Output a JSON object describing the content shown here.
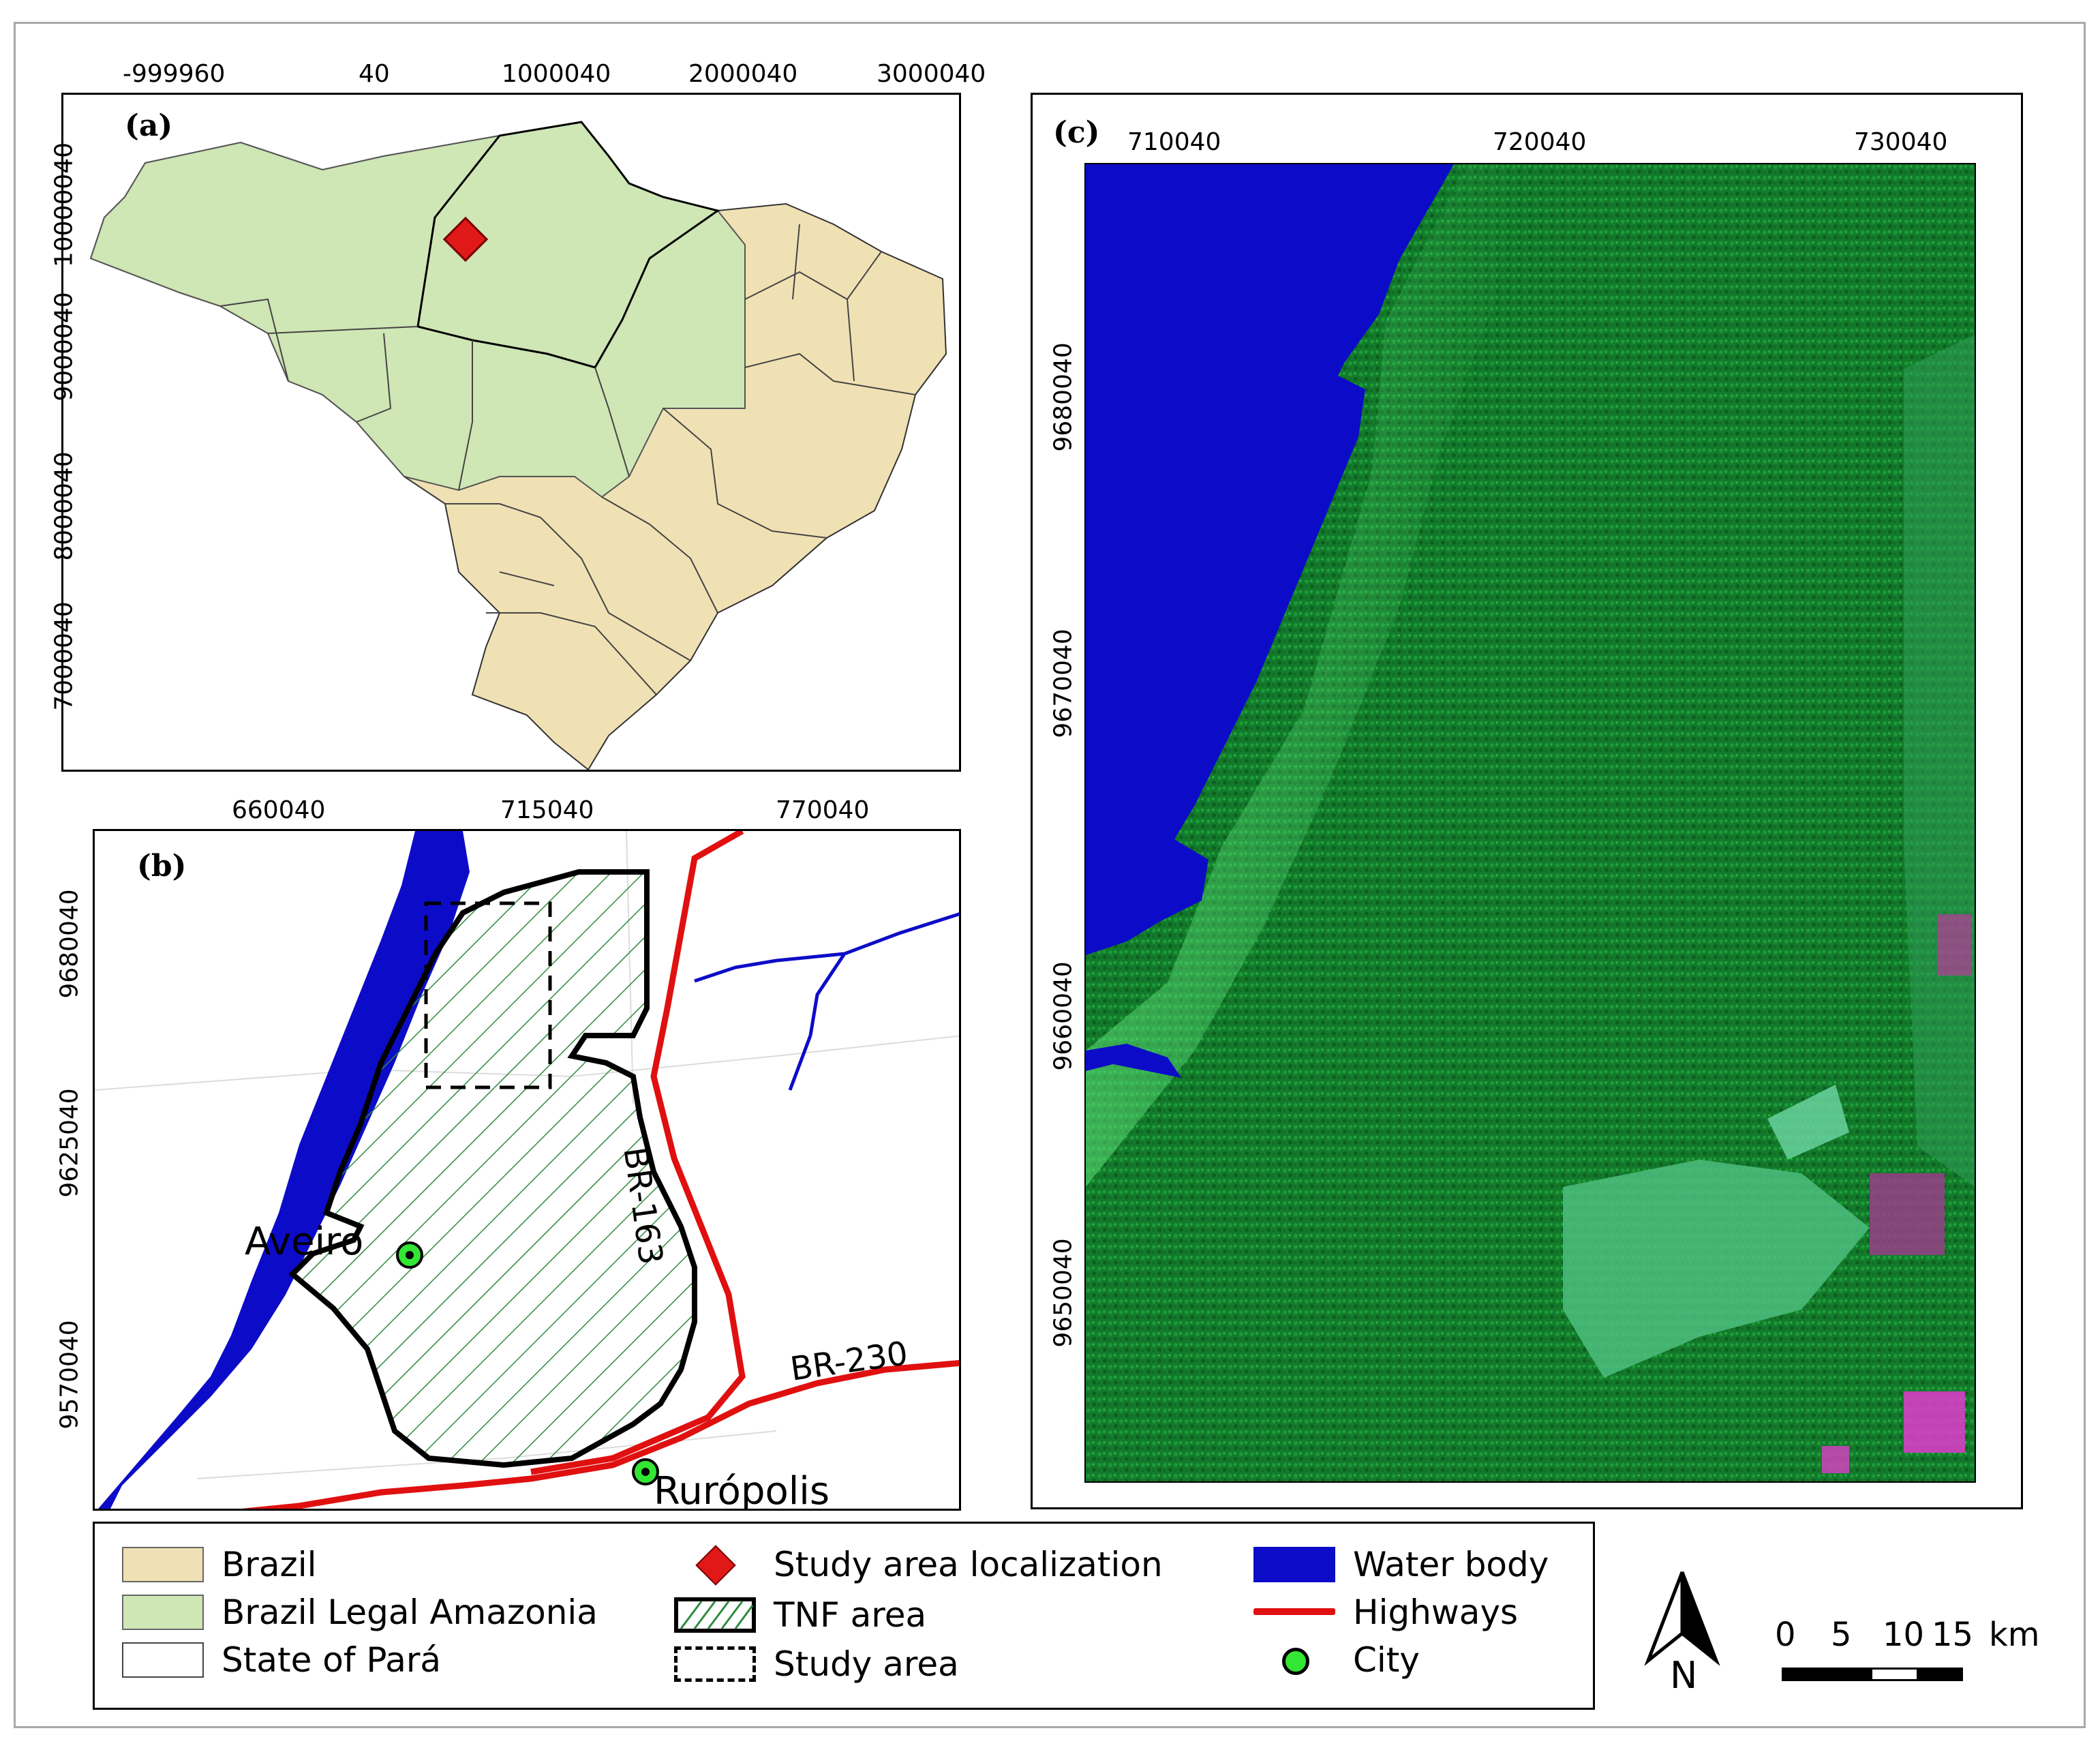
{
  "panels": {
    "a": {
      "label": "(a)",
      "x_ticks": [
        "-999960",
        "40",
        "1000040",
        "2000040",
        "3000040"
      ],
      "y_ticks": [
        "10000040",
        "9000040",
        "8000040",
        "7000040"
      ]
    },
    "b": {
      "label": "(b)",
      "x_ticks": [
        "660040",
        "715040",
        "770040"
      ],
      "y_ticks": [
        "9680040",
        "9625040",
        "9570040"
      ],
      "cities": [
        "Aveiro",
        "Rurópolis"
      ],
      "highways": [
        "BR-163",
        "BR-230"
      ]
    },
    "c": {
      "label": "(c)",
      "x_ticks": [
        "710040",
        "720040",
        "730040"
      ],
      "y_ticks": [
        "9680040",
        "9670040",
        "9660040",
        "9650040"
      ]
    }
  },
  "legend": {
    "brazil": "Brazil",
    "legal_amazonia": "Brazil Legal Amazonia",
    "para": "State of Pará",
    "study_loc": "Study area localization",
    "tnf": "TNF area",
    "study_area": "Study area",
    "water": "Water body",
    "highways": "Highways",
    "city": "City"
  },
  "north_arrow": "N",
  "scale_bar": {
    "labels": [
      "0",
      "5",
      "10",
      "15"
    ],
    "unit": "km"
  },
  "colors": {
    "brazil": "#f0e1b4",
    "amazonia": "#cfe6b5",
    "water": "#0c0cc8",
    "highway": "#e01010",
    "city": "#33e633",
    "study_marker": "#e01818",
    "hatch": "#2e8b3e",
    "forest": "#127a2a"
  }
}
